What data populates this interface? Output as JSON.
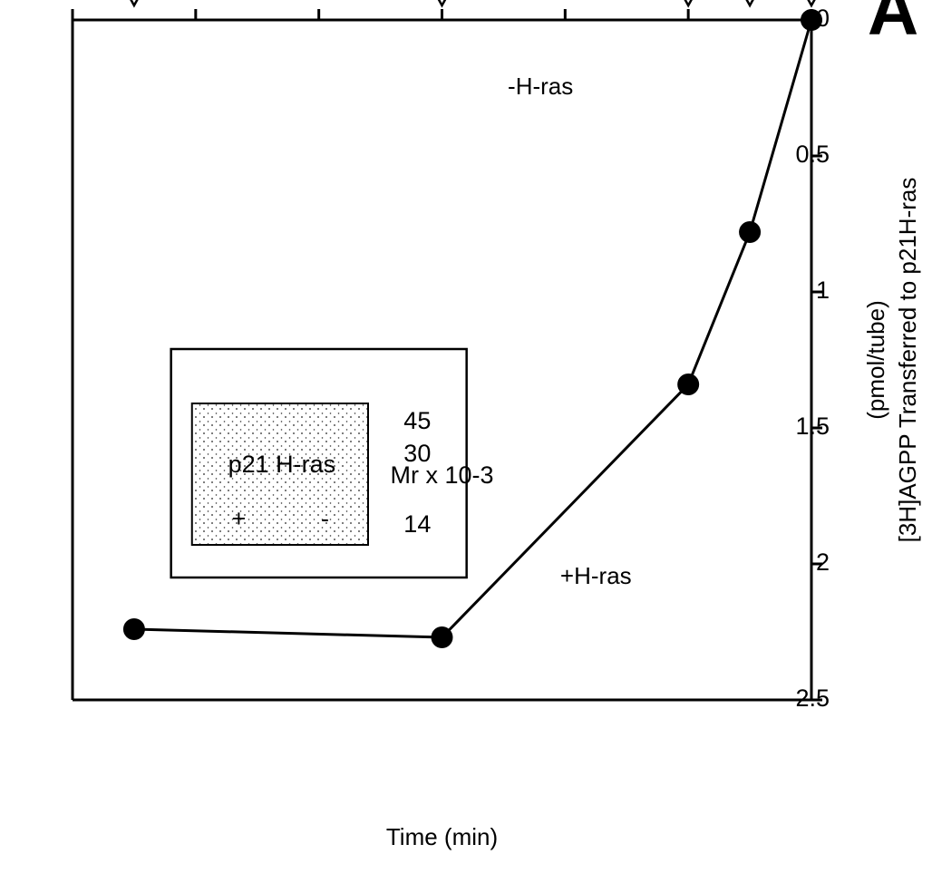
{
  "chart_data": {
    "type": "line",
    "panel_label": "A",
    "xlabel": "Time (min)",
    "ylabel_line1": "[3H]AGPP Transferred to p21H-ras",
    "ylabel_line2": "(pmol/tube)",
    "xlim": [
      0,
      60
    ],
    "ylim": [
      0,
      2.5
    ],
    "x_ticks": [
      "0",
      "10",
      "20",
      "30",
      "40",
      "50",
      "60"
    ],
    "y_ticks": [
      "0",
      "0.5",
      "1",
      "1.5",
      "2",
      "2.5"
    ],
    "grid": false,
    "series": [
      {
        "name": "+H-ras",
        "marker": "filled-circle",
        "x": [
          0,
          5,
          10,
          30,
          55
        ],
        "y": [
          0.0,
          0.78,
          1.34,
          2.27,
          2.24
        ]
      },
      {
        "name": "-H-ras",
        "marker": "open-triangle",
        "x": [
          0,
          5,
          10,
          30,
          55
        ],
        "y": [
          0.0,
          0.0,
          0.0,
          0.0,
          0.0
        ]
      }
    ],
    "inset": {
      "axis_label": "Mr x 10-3",
      "mw_ticks": [
        "45",
        "30",
        "14"
      ],
      "lane_labels": [
        "-",
        "+"
      ],
      "lane_group_label": "p21 H-ras"
    }
  }
}
